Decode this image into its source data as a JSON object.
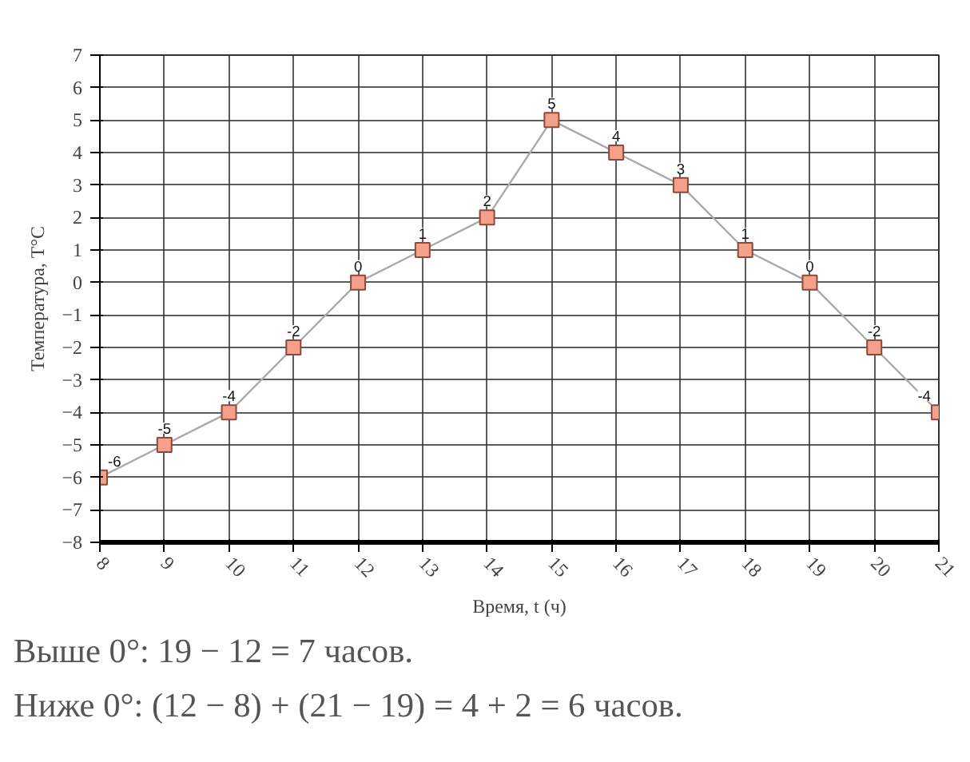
{
  "chart_data": {
    "type": "line",
    "xlabel": "Время, t (ч)",
    "ylabel": "Температура, T°C",
    "x": [
      8,
      9,
      10,
      11,
      12,
      13,
      14,
      15,
      16,
      17,
      18,
      19,
      20,
      21
    ],
    "series": [
      {
        "color": "#f4a08a",
        "values": [
          -6,
          -5,
          -4,
          -2,
          0,
          1,
          2,
          5,
          4,
          3,
          1,
          0,
          -2,
          -4
        ]
      }
    ],
    "xlim": [
      8,
      21
    ],
    "xticks": [
      8,
      9,
      10,
      11,
      12,
      13,
      14,
      15,
      16,
      17,
      18,
      19,
      20,
      21
    ],
    "ylim": [
      -8,
      7
    ],
    "yticks": [
      -8,
      -7,
      -6,
      -5,
      -4,
      -3,
      -2,
      -1,
      0,
      1,
      2,
      3,
      4,
      5,
      6,
      7
    ],
    "grid": true,
    "marker": "square",
    "line_style": "solid",
    "data_labels": true,
    "annotations": [
      "Выше 0°:   19 − 12 = 7 часов.",
      "Ниже 0°:   (12 − 8) + (21 − 19) = 4 + 2 = 6 часов."
    ]
  }
}
